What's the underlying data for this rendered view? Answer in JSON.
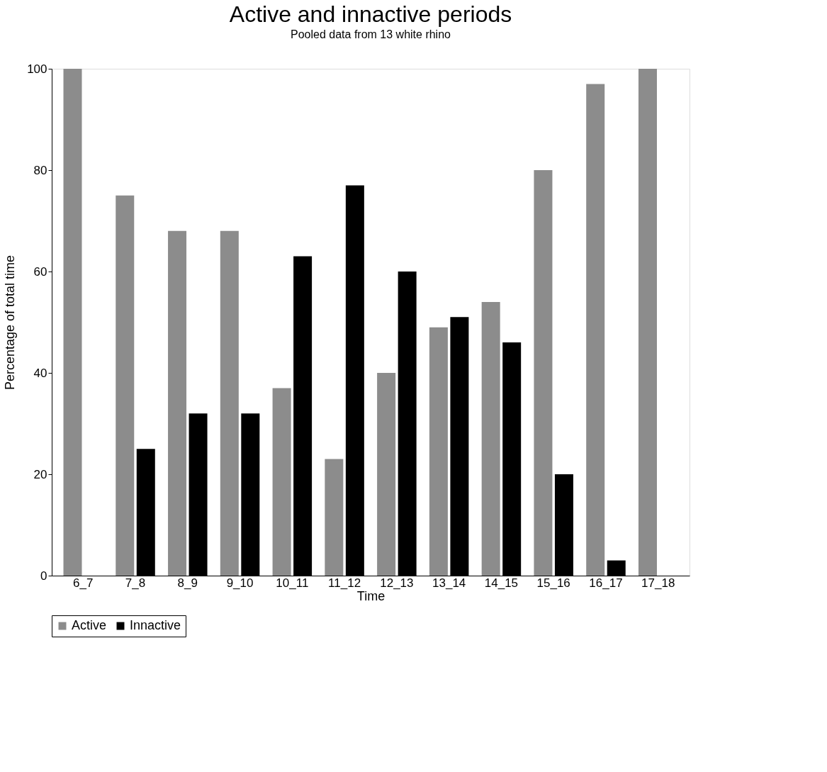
{
  "chart_data": {
    "type": "bar",
    "title": "Active and innactive periods",
    "subtitle": "Pooled data from 13 white rhino",
    "xlabel": "Time",
    "ylabel": "Percentage of total time",
    "categories": [
      "6_7",
      "7_8",
      "8_9",
      "9_10",
      "10_11",
      "11_12",
      "12_13",
      "13_14",
      "14_15",
      "15_16",
      "16_17",
      "17_18"
    ],
    "series": [
      {
        "name": "Active",
        "color": "#8c8c8c",
        "values": [
          100,
          75,
          68,
          68,
          37,
          23,
          40,
          49,
          54,
          80,
          97,
          100
        ]
      },
      {
        "name": "Innactive",
        "color": "#000000",
        "values": [
          0,
          25,
          32,
          32,
          63,
          77,
          60,
          51,
          46,
          20,
          3,
          0
        ]
      }
    ],
    "ylim": [
      0,
      100
    ],
    "yticks": [
      0,
      20,
      40,
      60,
      80,
      100
    ],
    "grid": false,
    "legend": "bottom"
  }
}
